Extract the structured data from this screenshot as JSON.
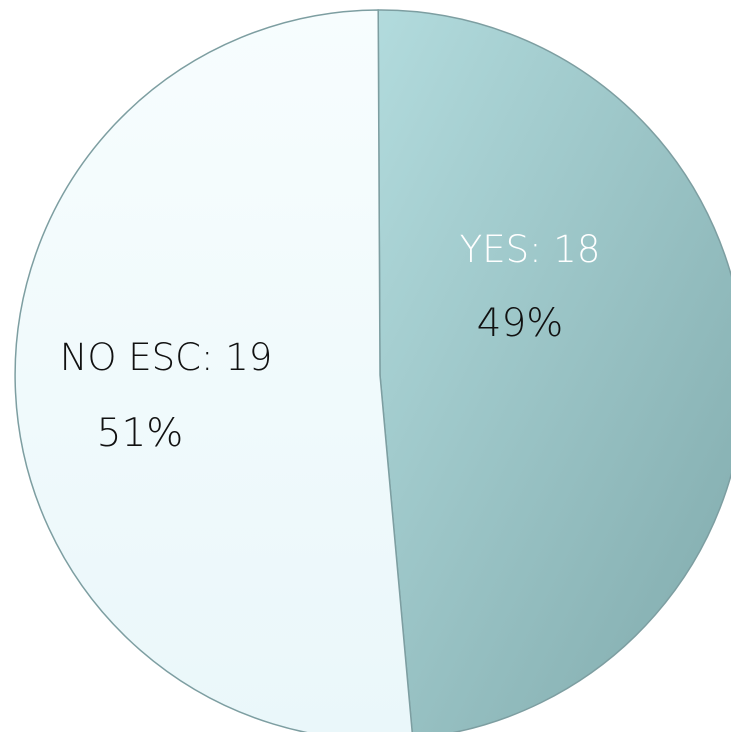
{
  "chart_data": {
    "type": "pie",
    "slices": [
      {
        "category": "YES",
        "value": 18,
        "percent_label": "49%",
        "label": "YES: 18",
        "color": "#98c6c8",
        "label_color": "#ffffff"
      },
      {
        "category": "NO ESC",
        "value": 19,
        "percent_label": "51%",
        "label": "NO ESC: 19",
        "color": "#f0fafc",
        "label_color": "#111111"
      }
    ],
    "colors": {
      "outline": "#7d9ea1",
      "background": "#ffffff"
    }
  }
}
